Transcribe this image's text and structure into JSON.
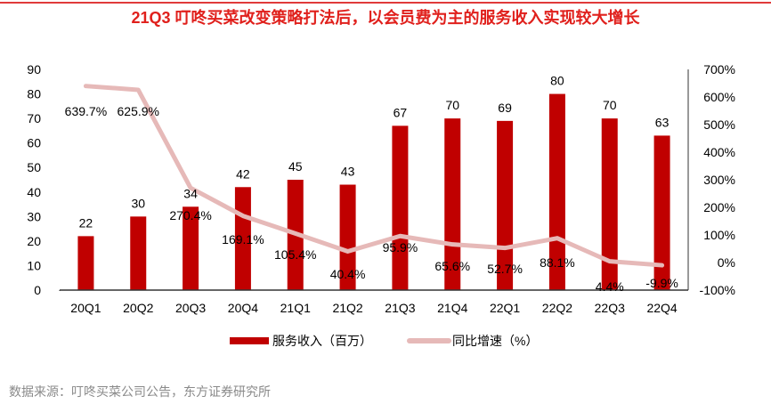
{
  "header_title": "21Q3 叮咚买菜改变策略打法后，以会员费为主的服务收入实现较大增长",
  "source_note": "数据来源：叮咚买菜公司公告，东方证券研究所",
  "chart_data": {
    "type": "bar+line",
    "title": "21Q3 叮咚买菜改变策略打法后，以会员费为主的服务收入实现较大增长",
    "categories": [
      "20Q1",
      "20Q2",
      "20Q3",
      "20Q4",
      "21Q1",
      "21Q2",
      "21Q3",
      "21Q4",
      "22Q1",
      "22Q2",
      "22Q3",
      "22Q4"
    ],
    "series": [
      {
        "name": "服务收入（百万）",
        "type": "bar",
        "axis": "left",
        "color": "#c00000",
        "values": [
          22,
          30,
          34,
          42,
          45,
          43,
          67,
          70,
          69,
          80,
          70,
          63
        ],
        "labels": [
          "22",
          "30",
          "34",
          "42",
          "45",
          "43",
          "67",
          "70",
          "69",
          "80",
          "70",
          "63"
        ]
      },
      {
        "name": "同比增速（%）",
        "type": "line",
        "axis": "right",
        "color": "#e6b9b8",
        "values": [
          639.7,
          625.9,
          270.4,
          169.1,
          105.4,
          40.4,
          95.9,
          65.6,
          52.7,
          88.1,
          4.4,
          -9.9
        ],
        "labels": [
          "639.7%",
          "625.9%",
          "270.4%",
          "169.1%",
          "105.4%",
          "40.4%",
          "95.9%",
          "65.6%",
          "52.7%",
          "88.1%",
          "4.4%",
          "-9.9%"
        ]
      }
    ],
    "ylim_left": [
      0,
      90
    ],
    "yticks_left": [
      "0",
      "10",
      "20",
      "30",
      "40",
      "50",
      "60",
      "70",
      "80",
      "90"
    ],
    "ylim_right": [
      -100,
      700
    ],
    "yticks_right": [
      "-100%",
      "0%",
      "100%",
      "200%",
      "300%",
      "400%",
      "500%",
      "600%",
      "700%"
    ],
    "legend_position": "bottom",
    "grid": false
  }
}
